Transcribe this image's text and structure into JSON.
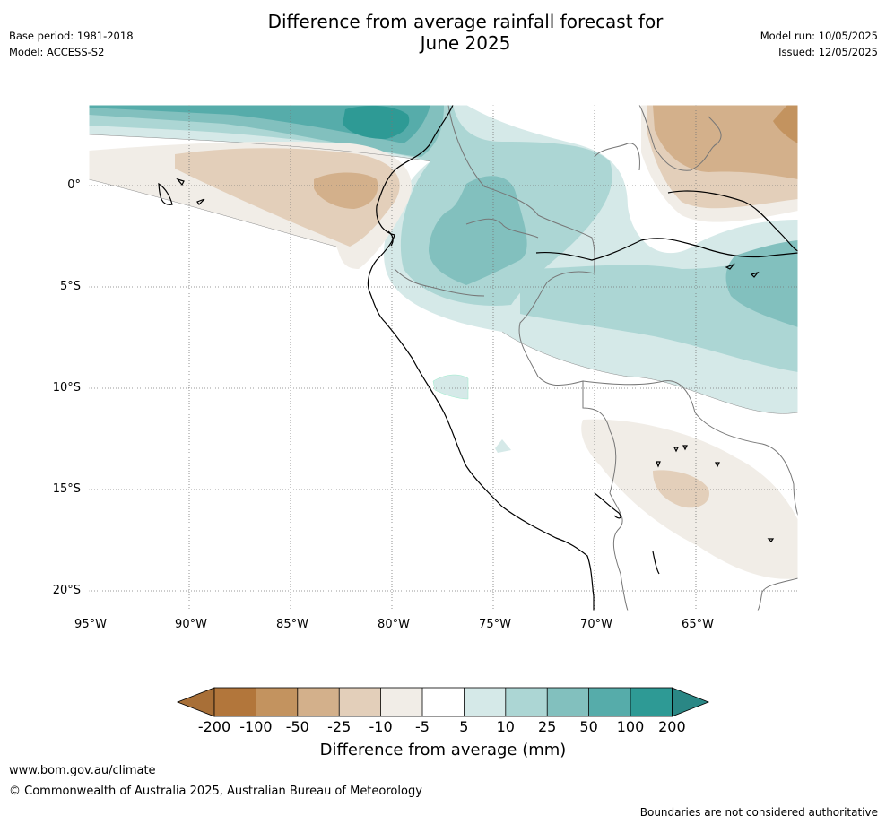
{
  "title_line1": "Difference from average rainfall forecast for",
  "title_line2": "June 2025",
  "meta_left": {
    "base_period": "Base period: 1981-2018",
    "model": "Model: ACCESS-S2"
  },
  "meta_right": {
    "model_run": "Model run: 10/05/2025",
    "issued": "Issued: 12/05/2025"
  },
  "lat_labels": [
    "0°",
    "5°S",
    "10°S",
    "15°S",
    "20°S"
  ],
  "lon_labels": [
    "95°W",
    "90°W",
    "85°W",
    "80°W",
    "75°W",
    "70°W",
    "65°W"
  ],
  "colorbar": {
    "label": "Difference from average (mm)",
    "ticks": [
      "-200",
      "-100",
      "-50",
      "-25",
      "-10",
      "-5",
      "5",
      "10",
      "25",
      "50",
      "100",
      "200"
    ],
    "colors": [
      "#a86f37",
      "#b2763b",
      "#c3935f",
      "#d3b08b",
      "#e3cfba",
      "#f1ede7",
      "#ffffff",
      "#d5e9e8",
      "#acd6d4",
      "#82c0be",
      "#56acaa",
      "#2e9a95",
      "#2a8785"
    ]
  },
  "footer": {
    "url": "www.bom.gov.au/climate",
    "copyright": "© Commonwealth of Australia 2025, Australian Bureau of Meteorology",
    "note": "Boundaries are not considered authoritative"
  }
}
